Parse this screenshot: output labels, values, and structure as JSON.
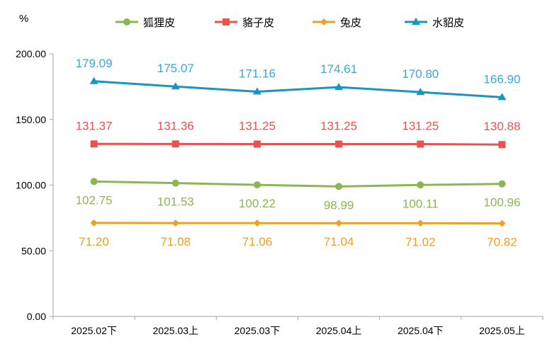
{
  "chart_data": {
    "type": "line",
    "unit_label": "%",
    "categories": [
      "2025.02下",
      "2025.03上",
      "2025.03下",
      "2025.04上",
      "2025.04下",
      "2025.05上"
    ],
    "ylim": [
      0,
      200
    ],
    "yticks": [
      "0.00",
      "50.00",
      "100.00",
      "150.00",
      "200.00"
    ],
    "grid": false,
    "legend_position": "top",
    "series": [
      {
        "name": "狐狸皮",
        "color": "#8fb552",
        "marker": "circle",
        "values": [
          102.75,
          101.53,
          100.22,
          98.99,
          100.11,
          100.96
        ],
        "labels": [
          "102.75",
          "101.53",
          "100.22",
          "98.99",
          "100.11",
          "100.96"
        ],
        "label_position": "below"
      },
      {
        "name": "貉子皮",
        "color": "#e8534f",
        "marker": "square",
        "values": [
          131.37,
          131.36,
          131.25,
          131.25,
          131.25,
          130.88
        ],
        "labels": [
          "131.37",
          "131.36",
          "131.25",
          "131.25",
          "131.25",
          "130.88"
        ],
        "label_position": "above"
      },
      {
        "name": "兔皮",
        "color": "#e9a126",
        "marker": "diamond",
        "values": [
          71.2,
          71.08,
          71.06,
          71.04,
          71.02,
          70.82
        ],
        "labels": [
          "71.20",
          "71.08",
          "71.06",
          "71.04",
          "71.02",
          "70.82"
        ],
        "label_position": "below"
      },
      {
        "name": "水貂皮",
        "color": "#1b95bf",
        "marker": "triangle",
        "label_color": "#35a9dc",
        "values": [
          179.09,
          175.07,
          171.16,
          174.61,
          170.8,
          166.9
        ],
        "labels": [
          "179.09",
          "175.07",
          "171.16",
          "174.61",
          "170.80",
          "166.90"
        ],
        "label_position": "above"
      }
    ]
  }
}
